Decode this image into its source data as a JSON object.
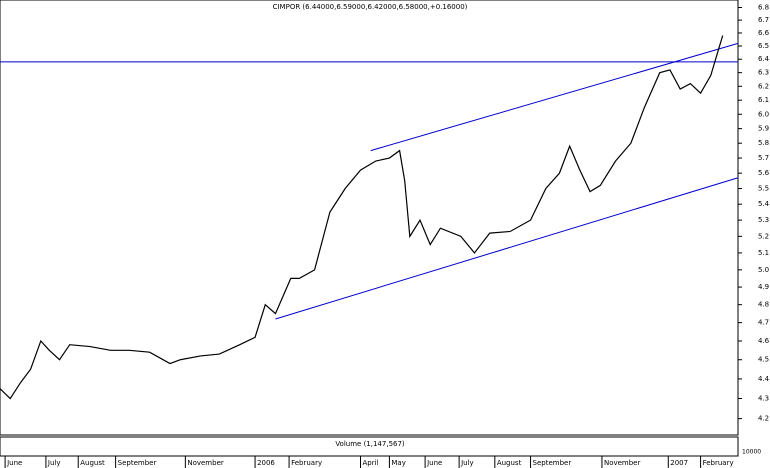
{
  "chart_data": {
    "type": "line",
    "title": "CIMPOR (6.44000,6.59000,6.42000,6.58000,+0.16000)",
    "volume_title": "Volume (1,147,567)",
    "volume_tick_label": "10000",
    "log_scale": true,
    "x": [
      0,
      6,
      12,
      18,
      24,
      29,
      35,
      41,
      53,
      65,
      76,
      88,
      100,
      106,
      118,
      129,
      141,
      150,
      156,
      162,
      171,
      176,
      185,
      194,
      203,
      212,
      221,
      229,
      235,
      238,
      241,
      247,
      253,
      259,
      271,
      279,
      288,
      300,
      312,
      321,
      329,
      335,
      341,
      347,
      353,
      362,
      371,
      379,
      388,
      394,
      400,
      406,
      412,
      418,
      422,
      425
    ],
    "series": [
      {
        "name": "CIMPOR",
        "color": "#000000",
        "values": [
          4.35,
          4.3,
          4.38,
          4.45,
          4.6,
          4.55,
          4.5,
          4.58,
          4.57,
          4.55,
          4.55,
          4.54,
          4.48,
          4.5,
          4.52,
          4.53,
          4.58,
          4.62,
          4.8,
          4.75,
          4.95,
          4.95,
          5.0,
          5.35,
          5.5,
          5.62,
          5.68,
          5.7,
          5.75,
          5.55,
          5.2,
          5.3,
          5.15,
          5.25,
          5.2,
          5.1,
          5.22,
          5.23,
          5.3,
          5.5,
          5.6,
          5.78,
          5.62,
          5.48,
          5.52,
          5.68,
          5.8,
          6.05,
          6.3,
          6.32,
          6.18,
          6.22,
          6.15,
          6.28,
          6.45,
          6.58
        ]
      }
    ],
    "trendlines": [
      {
        "color": "#0000cc",
        "x": [
          218,
          434
        ],
        "y": [
          5.75,
          6.52
        ]
      },
      {
        "color": "#0000cc",
        "x": [
          162,
          434
        ],
        "y": [
          4.72,
          5.57
        ]
      },
      {
        "color": "#0000cc",
        "x": [
          0,
          434
        ],
        "y": [
          6.38,
          6.38
        ]
      }
    ],
    "xlim": [
      0,
      434
    ],
    "xticks": [
      {
        "value": 3,
        "label": "June"
      },
      {
        "value": 27,
        "label": "July"
      },
      {
        "value": 46,
        "label": "August"
      },
      {
        "value": 68,
        "label": "September"
      },
      {
        "value": 109,
        "label": "November"
      },
      {
        "value": 150,
        "label": "2006"
      },
      {
        "value": 170,
        "label": "February"
      },
      {
        "value": 212,
        "label": "April"
      },
      {
        "value": 229,
        "label": "May"
      },
      {
        "value": 250,
        "label": "June"
      },
      {
        "value": 270,
        "label": "July"
      },
      {
        "value": 291,
        "label": "August"
      },
      {
        "value": 312,
        "label": "September"
      },
      {
        "value": 354,
        "label": "November"
      },
      {
        "value": 393,
        "label": "2007"
      },
      {
        "value": 412,
        "label": "February"
      }
    ],
    "ylim": [
      4.12,
      6.86
    ],
    "yticks": [
      4.2,
      4.3,
      4.4,
      4.5,
      4.6,
      4.7,
      4.8,
      4.9,
      {
        "value": 5,
        "label": "5.0"
      },
      5.1,
      5.2,
      5.3,
      5.4,
      5.5,
      5.6,
      5.7,
      5.8,
      5.9,
      {
        "value": 6,
        "label": "6.0"
      },
      6.1,
      6.2,
      6.3,
      6.4,
      6.5,
      6.6,
      6.7,
      6.8
    ]
  }
}
